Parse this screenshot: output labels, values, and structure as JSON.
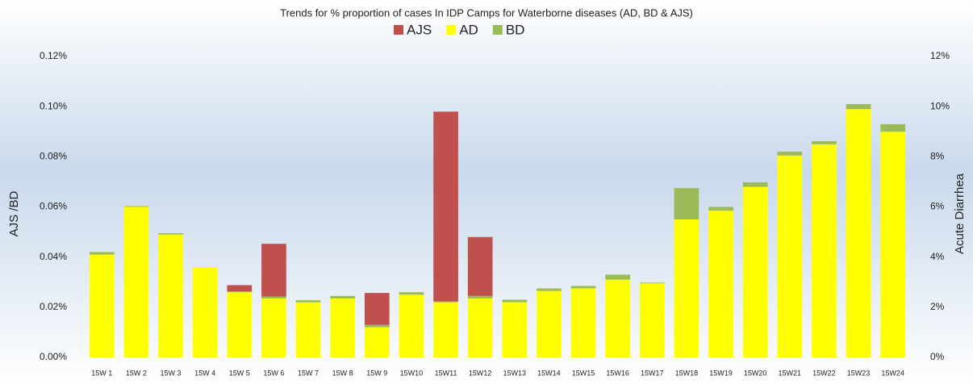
{
  "chart_data": {
    "type": "bar",
    "title": "Trends for % proportion of cases In IDP Camps for Waterborne diseases (AD, BD & AJS)",
    "ylabel": "AJS /BD",
    "y2label": "Acute Diarrhea",
    "categories": [
      "15W 1",
      "15W 2",
      "15W 3",
      "15W 4",
      "15W 5",
      "15W 6",
      "15W 7",
      "15W 8",
      "15W 9",
      "15W10",
      "15W11",
      "15W12",
      "15W13",
      "15W14",
      "15W15",
      "15W16",
      "15W17",
      "15W18",
      "15W19",
      "15W20",
      "15W21",
      "15W22",
      "15W23",
      "15W24"
    ],
    "series": [
      {
        "name": "AJS",
        "color": "#c0504d",
        "values": [
          0,
          0,
          0,
          0,
          0.0025,
          0.021,
          0,
          0,
          0.0127,
          0,
          0.0757,
          0.0235,
          0,
          0,
          0,
          0,
          0,
          0,
          0,
          0,
          0,
          0,
          0,
          0
        ]
      },
      {
        "name": "AD",
        "color": "#ffff00",
        "axis": "y2",
        "values": [
          4.1,
          6.0,
          4.9,
          3.6,
          2.6,
          2.35,
          2.2,
          2.35,
          1.2,
          2.5,
          2.2,
          2.35,
          2.2,
          2.65,
          2.75,
          3.1,
          2.95,
          5.5,
          5.85,
          6.8,
          8.05,
          8.5,
          9.9,
          9.0
        ]
      },
      {
        "name": "BD",
        "color": "#9bbb59",
        "values": [
          0.001,
          0.0003,
          0.0005,
          0,
          0.0003,
          0.0008,
          0.0008,
          0.001,
          0.001,
          0.001,
          0.0003,
          0.001,
          0.001,
          0.001,
          0.001,
          0.002,
          0.0003,
          0.0125,
          0.0015,
          0.0018,
          0.0015,
          0.0012,
          0.002,
          0.003
        ]
      }
    ],
    "stacked": true,
    "ylim": [
      0,
      0.12
    ],
    "yticks": [
      {
        "value": 0,
        "label": "0.00%"
      },
      {
        "value": 0.02,
        "label": "0.02%"
      },
      {
        "value": 0.04,
        "label": "0.04%"
      },
      {
        "value": 0.06,
        "label": "0.06%"
      },
      {
        "value": 0.08,
        "label": "0.08%"
      },
      {
        "value": 0.1,
        "label": "0.10%"
      },
      {
        "value": 0.12,
        "label": "0.12%"
      }
    ],
    "y2lim": [
      0,
      12
    ],
    "y2ticks": [
      {
        "value": 0,
        "label": "0%"
      },
      {
        "value": 2,
        "label": "2%"
      },
      {
        "value": 4,
        "label": "4%"
      },
      {
        "value": 6,
        "label": "6%"
      },
      {
        "value": 8,
        "label": "8%"
      },
      {
        "value": 10,
        "label": "10%"
      },
      {
        "value": 12,
        "label": "12%"
      }
    ],
    "legend": "top"
  }
}
